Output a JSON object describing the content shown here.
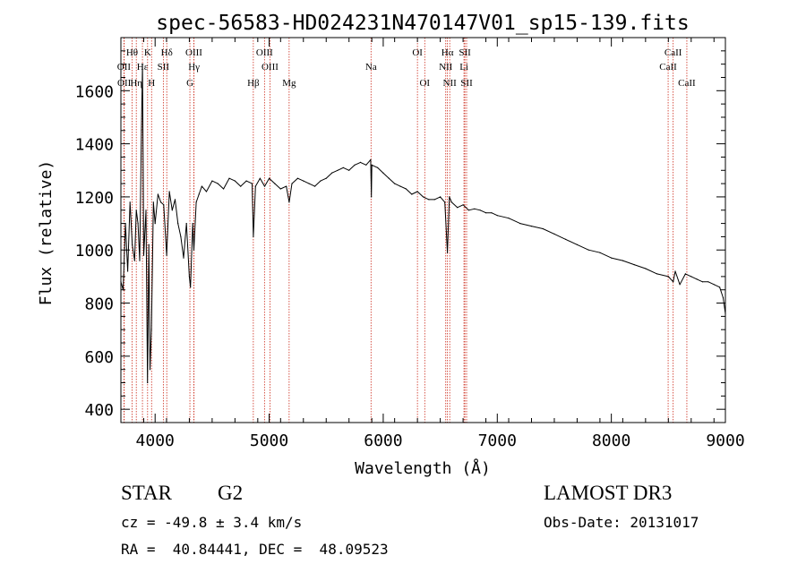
{
  "chart_data": {
    "type": "line",
    "title": "spec-56583-HD024231N470147V01_sp15-139.fits",
    "xlabel": "Wavelength (Å)",
    "ylabel": "Flux (relative)",
    "xlim": [
      3700,
      9000
    ],
    "ylim": [
      350,
      1800
    ],
    "xticks": [
      4000,
      5000,
      6000,
      7000,
      8000,
      9000
    ],
    "yticks": [
      400,
      600,
      800,
      1000,
      1200,
      1400,
      1600
    ],
    "line_color": "#000000",
    "marker_color": "#cc2a1a",
    "series": [
      {
        "name": "flux",
        "x": [
          3700,
          3720,
          3740,
          3760,
          3780,
          3800,
          3820,
          3835,
          3850,
          3865,
          3880,
          3889,
          3900,
          3920,
          3933,
          3945,
          3955,
          3968,
          3985,
          4000,
          4025,
          4050,
          4075,
          4101,
          4125,
          4150,
          4175,
          4200,
          4225,
          4250,
          4275,
          4300,
          4310,
          4330,
          4340,
          4360,
          4385,
          4410,
          4450,
          4500,
          4550,
          4600,
          4650,
          4700,
          4750,
          4800,
          4850,
          4861,
          4880,
          4920,
          4960,
          5000,
          5050,
          5100,
          5150,
          5175,
          5200,
          5250,
          5300,
          5350,
          5400,
          5450,
          5500,
          5550,
          5600,
          5650,
          5700,
          5750,
          5800,
          5850,
          5890,
          5896,
          5900,
          5950,
          6000,
          6050,
          6100,
          6150,
          6200,
          6250,
          6300,
          6350,
          6400,
          6450,
          6500,
          6540,
          6563,
          6580,
          6600,
          6650,
          6700,
          6750,
          6800,
          6850,
          6900,
          6950,
          7000,
          7100,
          7200,
          7300,
          7400,
          7500,
          7600,
          7700,
          7800,
          7900,
          8000,
          8100,
          8200,
          8300,
          8400,
          8500,
          8542,
          8560,
          8600,
          8650,
          8700,
          8750,
          8800,
          8850,
          8900,
          8950,
          8980,
          9000
        ],
        "values": [
          880,
          850,
          1100,
          920,
          1180,
          1020,
          960,
          1150,
          1100,
          960,
          1450,
          1700,
          980,
          1150,
          500,
          1020,
          550,
          700,
          1180,
          1100,
          1210,
          1180,
          1170,
          980,
          1220,
          1150,
          1190,
          1100,
          1050,
          970,
          1100,
          900,
          860,
          1100,
          1000,
          1180,
          1210,
          1240,
          1220,
          1260,
          1250,
          1230,
          1270,
          1260,
          1240,
          1260,
          1250,
          1050,
          1240,
          1270,
          1240,
          1270,
          1250,
          1230,
          1240,
          1180,
          1250,
          1270,
          1260,
          1250,
          1240,
          1260,
          1270,
          1290,
          1300,
          1310,
          1300,
          1320,
          1330,
          1320,
          1340,
          1200,
          1320,
          1310,
          1290,
          1270,
          1250,
          1240,
          1230,
          1210,
          1220,
          1200,
          1190,
          1190,
          1200,
          1180,
          990,
          1200,
          1180,
          1160,
          1170,
          1150,
          1155,
          1150,
          1140,
          1140,
          1130,
          1120,
          1100,
          1090,
          1080,
          1060,
          1040,
          1020,
          1000,
          990,
          970,
          960,
          945,
          930,
          910,
          900,
          880,
          920,
          870,
          910,
          900,
          890,
          880,
          880,
          870,
          860,
          820,
          760
        ]
      }
    ],
    "markers": [
      {
        "label": "Hθ",
        "x": 3798,
        "row": 1
      },
      {
        "label": "OII",
        "x": 3727,
        "row": 2
      },
      {
        "label": "OII",
        "x": 3729,
        "row": 3
      },
      {
        "label": "K",
        "x": 3934,
        "row": 1
      },
      {
        "label": "Hε",
        "x": 3889,
        "row": 2
      },
      {
        "label": "Hη",
        "x": 3835,
        "row": 3
      },
      {
        "label": "H",
        "x": 3969,
        "row": 3
      },
      {
        "label": "SII",
        "x": 4072,
        "row": 2
      },
      {
        "label": "Hδ",
        "x": 4102,
        "row": 1
      },
      {
        "label": "OIII",
        "x": 4340,
        "row": 1
      },
      {
        "label": "Hγ",
        "x": 4341,
        "row": 2
      },
      {
        "label": "G",
        "x": 4305,
        "row": 3
      },
      {
        "label": "Hβ",
        "x": 4861,
        "row": 3
      },
      {
        "label": "OIII",
        "x": 4959,
        "row": 1
      },
      {
        "label": "OIII",
        "x": 5007,
        "row": 2
      },
      {
        "label": "Mg",
        "x": 5175,
        "row": 3
      },
      {
        "label": "Na",
        "x": 5893,
        "row": 2
      },
      {
        "label": "OI",
        "x": 6300,
        "row": 1
      },
      {
        "label": "OI",
        "x": 6364,
        "row": 3
      },
      {
        "label": "Hα",
        "x": 6563,
        "row": 1
      },
      {
        "label": "NII",
        "x": 6548,
        "row": 2
      },
      {
        "label": "NII",
        "x": 6583,
        "row": 3
      },
      {
        "label": "SII",
        "x": 6716,
        "row": 1
      },
      {
        "label": "Li",
        "x": 6708,
        "row": 2
      },
      {
        "label": "SII",
        "x": 6731,
        "row": 3
      },
      {
        "label": "CaII",
        "x": 8542,
        "row": 1
      },
      {
        "label": "CaII",
        "x": 8498,
        "row": 2
      },
      {
        "label": "CaII",
        "x": 8662,
        "row": 3
      }
    ]
  },
  "footer": {
    "class_label": "STAR",
    "subclass": "G2",
    "velocity": "cz = -49.8 ± 3.4 km/s",
    "coords": "RA =  40.84441, DEC =  48.09523",
    "survey": "LAMOST DR3",
    "obs_date": "Obs-Date: 20131017"
  }
}
